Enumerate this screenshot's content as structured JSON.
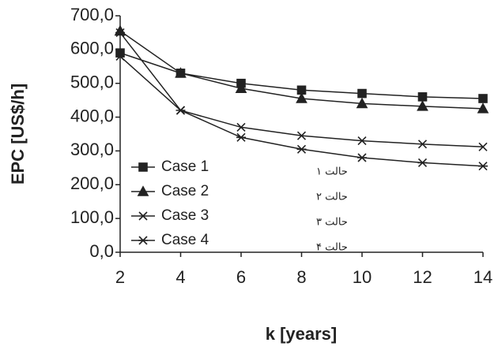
{
  "chart_data": {
    "type": "line",
    "x_label": "k [years]",
    "y_label": "EPC [US$/h]",
    "x": [
      2,
      4,
      6,
      8,
      10,
      12,
      14
    ],
    "series": [
      {
        "name": "Case 1",
        "color": "#222222",
        "marker": "square",
        "values": [
          590,
          530,
          500,
          480,
          470,
          460,
          455
        ]
      },
      {
        "name": "Case 2",
        "color": "#222222",
        "marker": "triangle",
        "values": [
          655,
          530,
          485,
          455,
          440,
          432,
          425
        ]
      },
      {
        "name": "Case 3",
        "color": "#222222",
        "marker": "x",
        "values": [
          580,
          420,
          370,
          345,
          330,
          320,
          312
        ]
      },
      {
        "name": "Case 4",
        "color": "#222222",
        "marker": "star",
        "values": [
          650,
          420,
          340,
          305,
          280,
          265,
          255
        ]
      }
    ],
    "annotations": [
      "حالت ۱",
      "حالت ۲",
      "حالت ۳",
      "حالت ۴"
    ],
    "xlim": [
      2,
      14
    ],
    "xticks": [
      2,
      4,
      6,
      8,
      10,
      12,
      14
    ],
    "ylim": [
      0,
      700
    ],
    "yticks": [
      {
        "value": 0,
        "label": "0,0"
      },
      {
        "value": 100,
        "label": "100,0"
      },
      {
        "value": 200,
        "label": "200,0"
      },
      {
        "value": 300,
        "label": "300,0"
      },
      {
        "value": 400,
        "label": "400,0"
      },
      {
        "value": 500,
        "label": "500,0"
      },
      {
        "value": 600,
        "label": "600,0"
      },
      {
        "value": 700,
        "label": "700,0"
      }
    ],
    "grid": false,
    "legend": "lower left"
  }
}
